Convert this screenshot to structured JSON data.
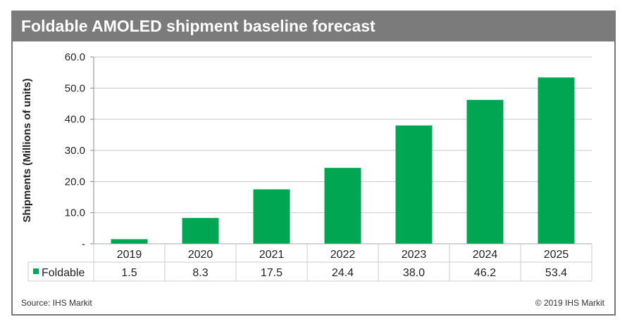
{
  "chart_data": {
    "type": "bar",
    "title": "Foldable AMOLED shipment baseline forecast",
    "xlabel": "",
    "ylabel": "Shipments (Millions of units)",
    "ylim": [
      0,
      60
    ],
    "yticks": [
      "-",
      "10.0",
      "20.0",
      "30.0",
      "40.0",
      "50.0",
      "60.0"
    ],
    "grid": true,
    "categories": [
      "2019",
      "2020",
      "2021",
      "2022",
      "2023",
      "2024",
      "2025"
    ],
    "series": [
      {
        "name": "Foldable",
        "values": [
          1.5,
          8.3,
          17.5,
          24.4,
          38.0,
          46.2,
          53.4
        ],
        "labels": [
          "1.5",
          "8.3",
          "17.5",
          "24.4",
          "38.0",
          "46.2",
          "53.4"
        ],
        "color": "#00a651"
      }
    ],
    "legend": "data-table"
  },
  "footer": {
    "source": "Source: IHS Markit",
    "copyright": "© 2019 IHS Markit"
  }
}
